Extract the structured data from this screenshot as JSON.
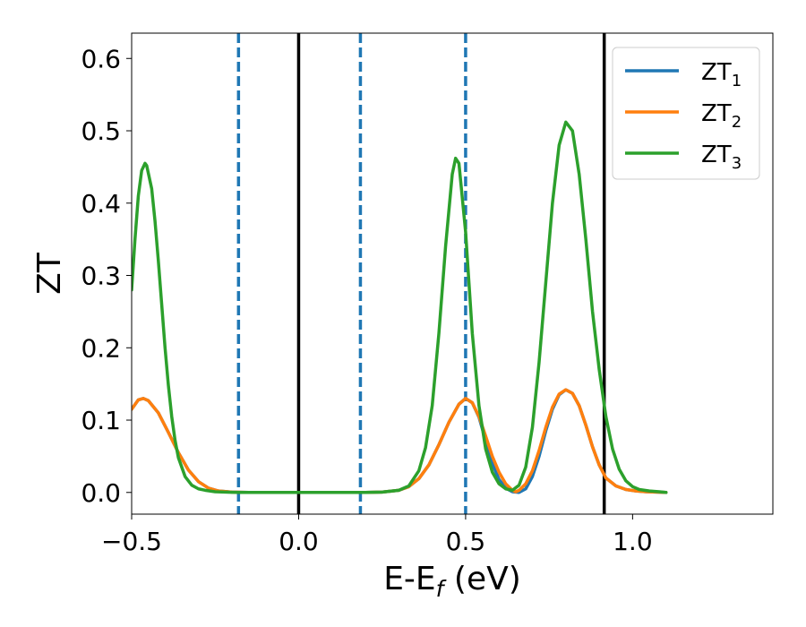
{
  "chart_data": {
    "type": "line",
    "xlabel_main": "E-E",
    "xlabel_sub": "f",
    "xlabel_units": " (eV)",
    "ylabel": "ZT",
    "xlim": [
      -0.5,
      1.42
    ],
    "ylim": [
      -0.03,
      0.635
    ],
    "x_ticks": [
      -0.5,
      0.0,
      0.5,
      1.0
    ],
    "x_tick_labels": [
      "−0.5",
      "0.0",
      "0.5",
      "1.0"
    ],
    "y_ticks": [
      0.0,
      0.1,
      0.2,
      0.3,
      0.4,
      0.5,
      0.6
    ],
    "y_tick_labels": [
      "0.0",
      "0.1",
      "0.2",
      "0.3",
      "0.4",
      "0.5",
      "0.6"
    ],
    "grid": false,
    "legend_position": "top-right",
    "vlines_solid": [
      0.0,
      0.915
    ],
    "vlines_dashed": [
      -0.18,
      0.185,
      0.5
    ],
    "vline_solid_color": "#000000",
    "vline_dashed_color": "#1f77b4",
    "series": [
      {
        "name": "ZT",
        "sub": "1",
        "color": "#1f77b4",
        "x": [
          -0.5,
          -0.48,
          -0.465,
          -0.45,
          -0.42,
          -0.39,
          -0.36,
          -0.33,
          -0.3,
          -0.27,
          -0.24,
          -0.2,
          -0.15,
          -0.1,
          0.0,
          0.1,
          0.2,
          0.25,
          0.3,
          0.33,
          0.36,
          0.39,
          0.42,
          0.45,
          0.48,
          0.5,
          0.52,
          0.54,
          0.56,
          0.58,
          0.6,
          0.62,
          0.64,
          0.66,
          0.68,
          0.7,
          0.72,
          0.74,
          0.76,
          0.78,
          0.8,
          0.82,
          0.84,
          0.86,
          0.88,
          0.9,
          0.92,
          0.95,
          0.98,
          1.01,
          1.04,
          1.07,
          1.1
        ],
        "y": [
          0.115,
          0.128,
          0.13,
          0.127,
          0.11,
          0.083,
          0.055,
          0.031,
          0.015,
          0.006,
          0.002,
          0.0005,
          0.0,
          0.0,
          0.0,
          0.0,
          0.0,
          0.0005,
          0.003,
          0.008,
          0.019,
          0.038,
          0.066,
          0.097,
          0.122,
          0.13,
          0.124,
          0.104,
          0.072,
          0.04,
          0.018,
          0.006,
          0.001,
          0.0,
          0.005,
          0.022,
          0.05,
          0.085,
          0.115,
          0.135,
          0.142,
          0.137,
          0.12,
          0.093,
          0.063,
          0.038,
          0.02,
          0.009,
          0.004,
          0.002,
          0.001,
          0.0005,
          0.0
        ]
      },
      {
        "name": "ZT",
        "sub": "2",
        "color": "#ff7f0e",
        "x": [
          -0.5,
          -0.48,
          -0.465,
          -0.45,
          -0.42,
          -0.39,
          -0.36,
          -0.33,
          -0.3,
          -0.27,
          -0.24,
          -0.2,
          -0.15,
          -0.1,
          0.0,
          0.1,
          0.2,
          0.25,
          0.3,
          0.33,
          0.36,
          0.39,
          0.42,
          0.45,
          0.48,
          0.5,
          0.52,
          0.54,
          0.56,
          0.58,
          0.6,
          0.62,
          0.64,
          0.65,
          0.66,
          0.68,
          0.7,
          0.72,
          0.74,
          0.76,
          0.78,
          0.8,
          0.82,
          0.84,
          0.86,
          0.88,
          0.9,
          0.92,
          0.95,
          0.98,
          1.01,
          1.04,
          1.07,
          1.1
        ],
        "y": [
          0.115,
          0.128,
          0.13,
          0.127,
          0.11,
          0.083,
          0.055,
          0.031,
          0.015,
          0.006,
          0.002,
          0.0005,
          0.0,
          0.0,
          0.0,
          0.0,
          0.0,
          0.0005,
          0.003,
          0.008,
          0.019,
          0.038,
          0.066,
          0.097,
          0.122,
          0.13,
          0.124,
          0.105,
          0.078,
          0.05,
          0.028,
          0.012,
          0.003,
          0.001,
          0.003,
          0.012,
          0.03,
          0.058,
          0.09,
          0.118,
          0.136,
          0.142,
          0.137,
          0.12,
          0.093,
          0.063,
          0.038,
          0.02,
          0.009,
          0.004,
          0.002,
          0.001,
          0.0005,
          0.0
        ]
      },
      {
        "name": "ZT",
        "sub": "3",
        "color": "#2ca02c",
        "x": [
          -0.5,
          -0.49,
          -0.48,
          -0.47,
          -0.46,
          -0.455,
          -0.44,
          -0.43,
          -0.42,
          -0.41,
          -0.4,
          -0.39,
          -0.38,
          -0.37,
          -0.36,
          -0.34,
          -0.32,
          -0.3,
          -0.28,
          -0.25,
          -0.22,
          -0.18,
          -0.1,
          0.0,
          0.1,
          0.2,
          0.25,
          0.3,
          0.33,
          0.36,
          0.38,
          0.4,
          0.42,
          0.44,
          0.46,
          0.47,
          0.48,
          0.5,
          0.52,
          0.54,
          0.56,
          0.58,
          0.6,
          0.62,
          0.64,
          0.66,
          0.68,
          0.7,
          0.72,
          0.74,
          0.76,
          0.78,
          0.8,
          0.82,
          0.84,
          0.86,
          0.88,
          0.9,
          0.92,
          0.94,
          0.96,
          0.98,
          1.0,
          1.02,
          1.05,
          1.08,
          1.1
        ],
        "y": [
          0.28,
          0.35,
          0.41,
          0.445,
          0.455,
          0.452,
          0.42,
          0.375,
          0.32,
          0.26,
          0.2,
          0.148,
          0.105,
          0.072,
          0.048,
          0.022,
          0.01,
          0.005,
          0.003,
          0.001,
          0.0005,
          0.0,
          0.0,
          0.0,
          0.0,
          0.0,
          0.0005,
          0.003,
          0.009,
          0.03,
          0.062,
          0.12,
          0.22,
          0.34,
          0.44,
          0.462,
          0.455,
          0.36,
          0.22,
          0.12,
          0.06,
          0.028,
          0.012,
          0.005,
          0.003,
          0.01,
          0.035,
          0.09,
          0.18,
          0.29,
          0.4,
          0.48,
          0.512,
          0.5,
          0.44,
          0.35,
          0.25,
          0.17,
          0.105,
          0.06,
          0.032,
          0.016,
          0.008,
          0.004,
          0.002,
          0.001,
          0.0
        ]
      }
    ]
  }
}
